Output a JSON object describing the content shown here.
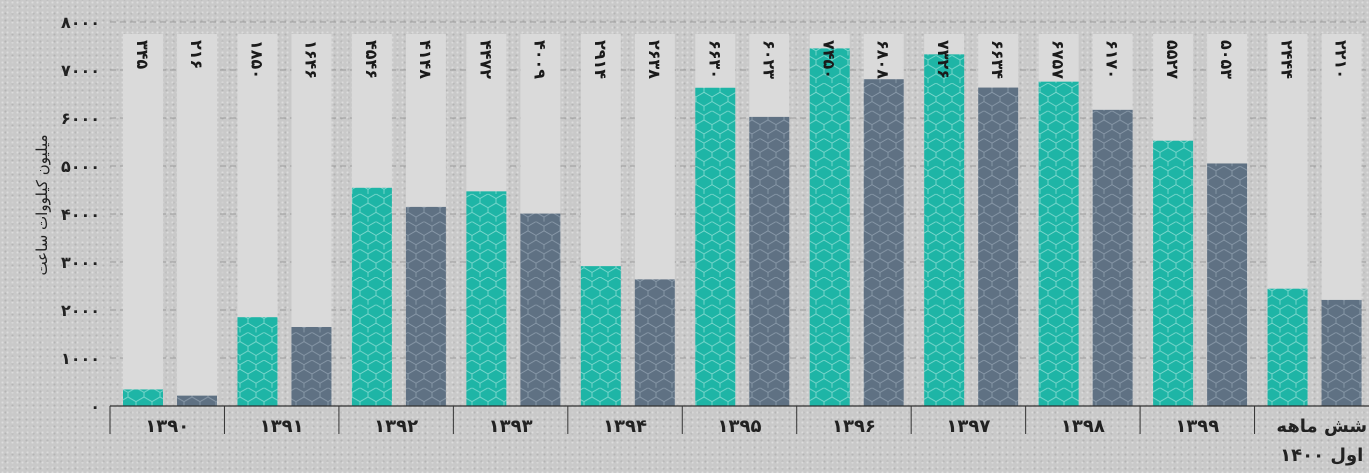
{
  "chart_data": {
    "type": "bar",
    "ylabel": "میلیون کیلووات ساعت",
    "ylim": [
      0,
      8000
    ],
    "yticks": [
      0,
      1000,
      2000,
      3000,
      4000,
      5000,
      6000,
      7000,
      8000
    ],
    "ytick_labels": [
      "۰",
      "۱۰۰۰",
      "۲۰۰۰",
      "۳۰۰۰",
      "۴۰۰۰",
      "۵۰۰۰",
      "۶۰۰۰",
      "۷۰۰۰",
      "۸۰۰۰"
    ],
    "grid": true,
    "categories": [
      "۱۳۹۰",
      "۱۳۹۱",
      "۱۳۹۲",
      "۱۳۹۳",
      "۱۳۹۴",
      "۱۳۹۵",
      "۱۳۹۶",
      "۱۳۹۷",
      "۱۳۹۸",
      "۱۳۹۹",
      "شش ماهه اول ۱۴۰۰"
    ],
    "series": [
      {
        "color": "#1eb5a6",
        "values": [
          345,
          1850,
          4546,
          4472,
          2914,
          6630,
          7450,
          7326,
          6757,
          5527,
          2444
        ],
        "labels": [
          "۳۴۵",
          "۱۸۵۰",
          "۴۵۴۶",
          "۴۴۷۲",
          "۲۹۱۴",
          "۶۶۳۰",
          "۷۴۵۰",
          "۷۳۲۶",
          "۶۷۵۷",
          "۵۵۲۷",
          "۲۴۴۴"
        ]
      },
      {
        "color": "#5f7183",
        "values": [
          216,
          1646,
          4148,
          4009,
          2638,
          6023,
          6808,
          6634,
          6170,
          5053,
          2210
        ],
        "labels": [
          "۲۱۶",
          "۱۶۴۶",
          "۴۱۴۸",
          "۴۰۰۹",
          "۲۶۳۸",
          "۶۰۲۳",
          "۶۸۰۸",
          "۶۶۳۴",
          "۶۱۷۰",
          "۵۰۵۳",
          "۲۲۱۰"
        ]
      }
    ]
  }
}
